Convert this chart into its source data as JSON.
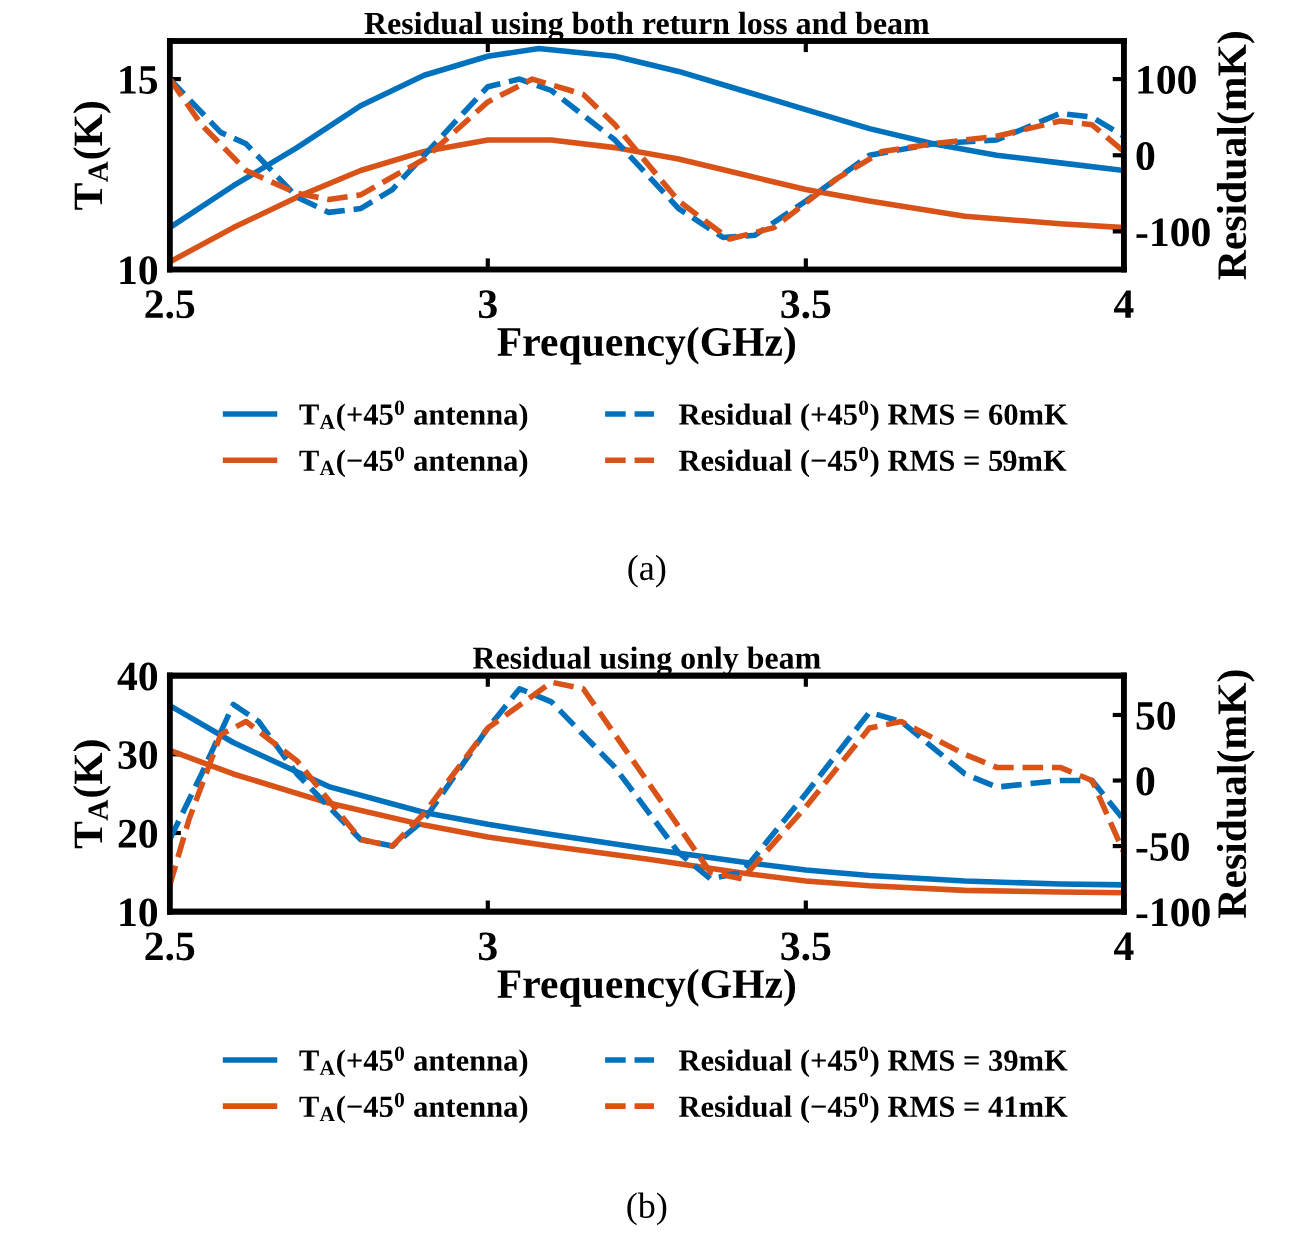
{
  "chart_data": [
    {
      "type": "line",
      "title": "Residual using both return loss and beam",
      "xlabel": "Frequency(GHz)",
      "ylabel": "T$_{A}$(K)",
      "y2label": "Residual(mK)",
      "xlim": [
        2.5,
        4
      ],
      "xticks": [
        2.5,
        3,
        3.5,
        4
      ],
      "ylim": [
        10,
        16
      ],
      "yticks": [
        10,
        15
      ],
      "y2lim": [
        -150,
        150
      ],
      "y2ticks": [
        -100,
        0,
        100
      ],
      "grid": false,
      "legend": "bottom",
      "annotations": [
        "(a)"
      ],
      "series": [
        {
          "name": "T$_{A}$(+45$^{0}$ antenna)",
          "color": "#0072bd",
          "line_style": "solid",
          "x": [
            2.5,
            2.6,
            2.7,
            2.8,
            2.9,
            3.0,
            3.08,
            3.2,
            3.3,
            3.4,
            3.5,
            3.6,
            3.7,
            3.8,
            3.9,
            4.0
          ],
          "values": [
            11.1,
            12.2,
            13.2,
            14.3,
            15.1,
            15.6,
            15.8,
            15.6,
            15.2,
            14.7,
            14.2,
            13.7,
            13.3,
            13.0,
            12.8,
            12.6
          ]
        },
        {
          "name": "T$_{A}$(−45$^{0}$ antenna)",
          "color": "#d95319",
          "line_style": "solid",
          "x": [
            2.5,
            2.6,
            2.7,
            2.8,
            2.9,
            3.0,
            3.05,
            3.1,
            3.2,
            3.3,
            3.4,
            3.5,
            3.6,
            3.75,
            3.9,
            4.0
          ],
          "values": [
            10.2,
            11.1,
            11.9,
            12.6,
            13.1,
            13.4,
            13.4,
            13.4,
            13.2,
            12.9,
            12.5,
            12.1,
            11.8,
            11.4,
            11.2,
            11.1
          ]
        },
        {
          "name": "Residual (+45$^{0}$) RMS = 60mK",
          "color": "#0072bd",
          "line_style": "dashed",
          "axis": "y2",
          "x": [
            2.5,
            2.58,
            2.62,
            2.7,
            2.75,
            2.8,
            2.85,
            2.9,
            3.0,
            3.05,
            3.1,
            3.2,
            3.3,
            3.37,
            3.42,
            3.5,
            3.6,
            3.7,
            3.8,
            3.9,
            3.95,
            4.0
          ],
          "values": [
            100,
            30,
            15,
            -55,
            -75,
            -70,
            -45,
            0,
            90,
            100,
            85,
            20,
            -70,
            -108,
            -105,
            -60,
            0,
            15,
            20,
            55,
            50,
            25
          ]
        },
        {
          "name": "Residual (−45$^{0}$) RMS = 59mK",
          "color": "#d95319",
          "line_style": "dashed",
          "axis": "y2",
          "x": [
            2.5,
            2.55,
            2.62,
            2.7,
            2.75,
            2.8,
            2.9,
            3.0,
            3.07,
            3.15,
            3.2,
            3.3,
            3.38,
            3.45,
            3.55,
            3.62,
            3.7,
            3.8,
            3.9,
            3.95,
            4.0
          ],
          "values": [
            100,
            40,
            -20,
            -50,
            -58,
            -52,
            -5,
            70,
            100,
            80,
            40,
            -60,
            -110,
            -95,
            -30,
            5,
            15,
            25,
            45,
            40,
            5
          ]
        }
      ]
    },
    {
      "type": "line",
      "title": "Residual using only beam",
      "xlabel": "Frequency(GHz)",
      "ylabel": "T$_{A}$(K)",
      "y2label": "Residual(mK)",
      "xlim": [
        2.5,
        4
      ],
      "xticks": [
        2.5,
        3,
        3.5,
        4
      ],
      "ylim": [
        10,
        40
      ],
      "yticks": [
        10,
        20,
        30,
        40
      ],
      "y2lim": [
        -100,
        80
      ],
      "y2ticks": [
        -100,
        -50,
        0,
        50
      ],
      "grid": false,
      "legend": "bottom",
      "annotations": [
        "(b)"
      ],
      "series": [
        {
          "name": "T$_{A}$(+45$^{0}$ antenna)",
          "color": "#0072bd",
          "line_style": "solid",
          "x": [
            2.5,
            2.6,
            2.75,
            2.9,
            3.0,
            3.1,
            3.25,
            3.4,
            3.5,
            3.6,
            3.75,
            3.9,
            4.0
          ],
          "values": [
            36.2,
            31.5,
            25.9,
            22.6,
            21.1,
            19.8,
            18,
            16.3,
            15.3,
            14.6,
            13.9,
            13.5,
            13.4
          ]
        },
        {
          "name": "T$_{A}$(−45$^{0}$ antenna)",
          "color": "#d95319",
          "line_style": "solid",
          "x": [
            2.5,
            2.6,
            2.75,
            2.9,
            3.0,
            3.1,
            3.25,
            3.4,
            3.5,
            3.6,
            3.75,
            3.9,
            4.0
          ],
          "values": [
            30.5,
            27.5,
            23.8,
            21.0,
            19.5,
            18.3,
            16.7,
            14.9,
            13.9,
            13.3,
            12.7,
            12.5,
            12.4
          ]
        },
        {
          "name": "Residual (+45$^{0}$) RMS = 39mK",
          "color": "#0072bd",
          "line_style": "dashed",
          "axis": "y2",
          "x": [
            2.5,
            2.55,
            2.6,
            2.64,
            2.7,
            2.8,
            2.85,
            2.9,
            3.0,
            3.05,
            3.1,
            3.2,
            3.3,
            3.35,
            3.4,
            3.5,
            3.6,
            3.65,
            3.75,
            3.8,
            3.9,
            3.95,
            4.0
          ],
          "values": [
            -45,
            5,
            58,
            45,
            5,
            -45,
            -50,
            -30,
            40,
            70,
            60,
            10,
            -55,
            -75,
            -70,
            -10,
            52,
            45,
            5,
            -5,
            0,
            0,
            -30
          ]
        },
        {
          "name": "Residual (−45$^{0}$) RMS = 41mK",
          "color": "#d95319",
          "line_style": "dashed",
          "axis": "y2",
          "x": [
            2.5,
            2.53,
            2.58,
            2.62,
            2.7,
            2.8,
            2.85,
            2.9,
            3.0,
            3.1,
            3.15,
            3.25,
            3.35,
            3.4,
            3.5,
            3.6,
            3.65,
            3.75,
            3.8,
            3.9,
            3.95,
            4.0
          ],
          "values": [
            -80,
            -30,
            35,
            45,
            15,
            -45,
            -50,
            -25,
            40,
            75,
            70,
            0,
            -70,
            -75,
            -20,
            40,
            45,
            20,
            10,
            10,
            0,
            -55
          ]
        }
      ]
    }
  ]
}
